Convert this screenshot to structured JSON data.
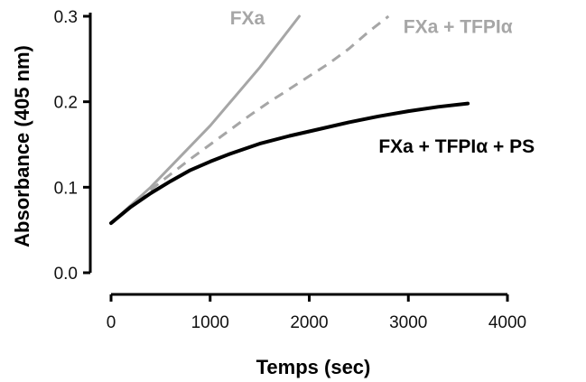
{
  "chart_data": {
    "type": "line",
    "title": "",
    "xlabel": "Temps (sec)",
    "ylabel": "Absorbance  (405 nm)",
    "xlim": [
      0,
      4000
    ],
    "ylim": [
      0.0,
      0.3
    ],
    "x_ticks": [
      "0",
      "1000",
      "2000",
      "3000",
      "4000"
    ],
    "y_ticks": [
      "0.0",
      "0.1",
      "0.2",
      "0.3"
    ],
    "grid": false,
    "legend": "none",
    "series": [
      {
        "name": "FXa",
        "color": "#a6a6a6",
        "style": "solid",
        "label_at": [
          1200,
          0.298
        ],
        "x": [
          0,
          400,
          1000,
          1500,
          1900
        ],
        "y": [
          0.058,
          0.1,
          0.172,
          0.24,
          0.3
        ]
      },
      {
        "name": "FXa  + TFPIα",
        "color": "#a6a6a6",
        "style": "dashed",
        "label_at": [
          2950,
          0.288
        ],
        "x": [
          0,
          200,
          400,
          600,
          800,
          1000,
          1200,
          1400,
          1600,
          1800,
          2000,
          2200,
          2400,
          2600,
          2800
        ],
        "y": [
          0.058,
          0.078,
          0.097,
          0.115,
          0.133,
          0.15,
          0.167,
          0.184,
          0.2,
          0.215,
          0.23,
          0.245,
          0.262,
          0.282,
          0.3
        ]
      },
      {
        "name": "FXa + TFPIα + PS",
        "color": "#000000",
        "style": "solid",
        "label_at": [
          2700,
          0.148
        ],
        "x": [
          0,
          200,
          400,
          600,
          800,
          1000,
          1200,
          1500,
          1800,
          2100,
          2400,
          2700,
          3000,
          3300,
          3600
        ],
        "y": [
          0.058,
          0.077,
          0.093,
          0.107,
          0.12,
          0.13,
          0.139,
          0.151,
          0.16,
          0.168,
          0.176,
          0.183,
          0.189,
          0.194,
          0.198
        ]
      }
    ]
  }
}
